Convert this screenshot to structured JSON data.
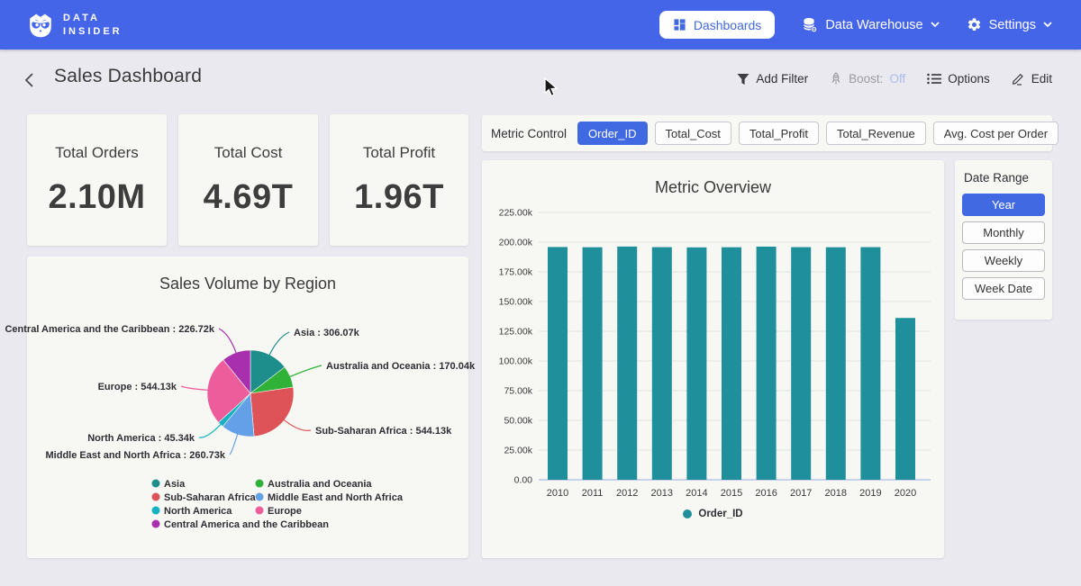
{
  "brand": {
    "line1": "DATA",
    "line2": "INSIDER"
  },
  "nav": {
    "dashboards": "Dashboards",
    "data_warehouse": "Data Warehouse",
    "settings": "Settings"
  },
  "header": {
    "title": "Sales Dashboard",
    "add_filter": "Add Filter",
    "boost_label": "Boost:",
    "boost_state": "Off",
    "options": "Options",
    "edit": "Edit"
  },
  "kpis": [
    {
      "label": "Total Orders",
      "value": "2.10M"
    },
    {
      "label": "Total Cost",
      "value": "4.69T"
    },
    {
      "label": "Total Profit",
      "value": "1.96T"
    }
  ],
  "metric_control": {
    "label": "Metric Control",
    "chips": [
      {
        "label": "Order_ID",
        "selected": true
      },
      {
        "label": "Total_Cost",
        "selected": false
      },
      {
        "label": "Total_Profit",
        "selected": false
      },
      {
        "label": "Total_Revenue",
        "selected": false
      },
      {
        "label": "Avg. Cost per Order",
        "selected": false
      }
    ]
  },
  "date_range": {
    "label": "Date Range",
    "options": [
      {
        "label": "Year",
        "selected": true
      },
      {
        "label": "Monthly",
        "selected": false
      },
      {
        "label": "Weekly",
        "selected": false
      },
      {
        "label": "Week Date",
        "selected": false
      }
    ]
  },
  "colors": {
    "accent_blue": "#4565e8",
    "chip_blue": "#4169e1",
    "bar_teal": "#1f8f9b",
    "boost_off": "#a9bcf0"
  },
  "chart_data": [
    {
      "type": "pie",
      "title": "Sales Volume by Region",
      "unit": "k",
      "slices": [
        {
          "label": "Asia",
          "value": 306.07,
          "display": "306.07k",
          "color": "#1d8e8c"
        },
        {
          "label": "Australia and Oceania",
          "value": 170.04,
          "display": "170.04k",
          "color": "#2fb237"
        },
        {
          "label": "Sub-Saharan Africa",
          "value": 544.13,
          "display": "544.13k",
          "color": "#de5357"
        },
        {
          "label": "Middle East and North Africa",
          "value": 260.73,
          "display": "260.73k",
          "color": "#64a0e8"
        },
        {
          "label": "North America",
          "value": 45.34,
          "display": "45.34k",
          "color": "#16b2c4"
        },
        {
          "label": "Europe",
          "value": 544.13,
          "display": "544.13k",
          "color": "#ee5d9b"
        },
        {
          "label": "Central America and the Caribbean",
          "value": 226.72,
          "display": "226.72k",
          "color": "#a82fad"
        }
      ],
      "legend_position": "bottom",
      "legend_columns": [
        [
          0,
          2,
          4,
          6
        ],
        [
          1,
          3,
          5
        ]
      ]
    },
    {
      "type": "bar",
      "title": "Metric Overview",
      "categories": [
        "2010",
        "2011",
        "2012",
        "2013",
        "2014",
        "2015",
        "2016",
        "2017",
        "2018",
        "2019",
        "2020"
      ],
      "series": [
        {
          "name": "Order_ID",
          "color": "#1f8f9b",
          "values": [
            195.9,
            195.7,
            196.3,
            195.8,
            195.6,
            195.7,
            196.2,
            195.8,
            195.7,
            195.8,
            136.2
          ]
        }
      ],
      "value_unit": "k",
      "ylim": [
        0,
        225
      ],
      "y_tick_labels": [
        "0.00",
        "25.00k",
        "50.00k",
        "75.00k",
        "100.00k",
        "125.00k",
        "150.00k",
        "175.00k",
        "200.00k",
        "225.00k"
      ],
      "grid": true,
      "legend_position": "bottom"
    }
  ]
}
